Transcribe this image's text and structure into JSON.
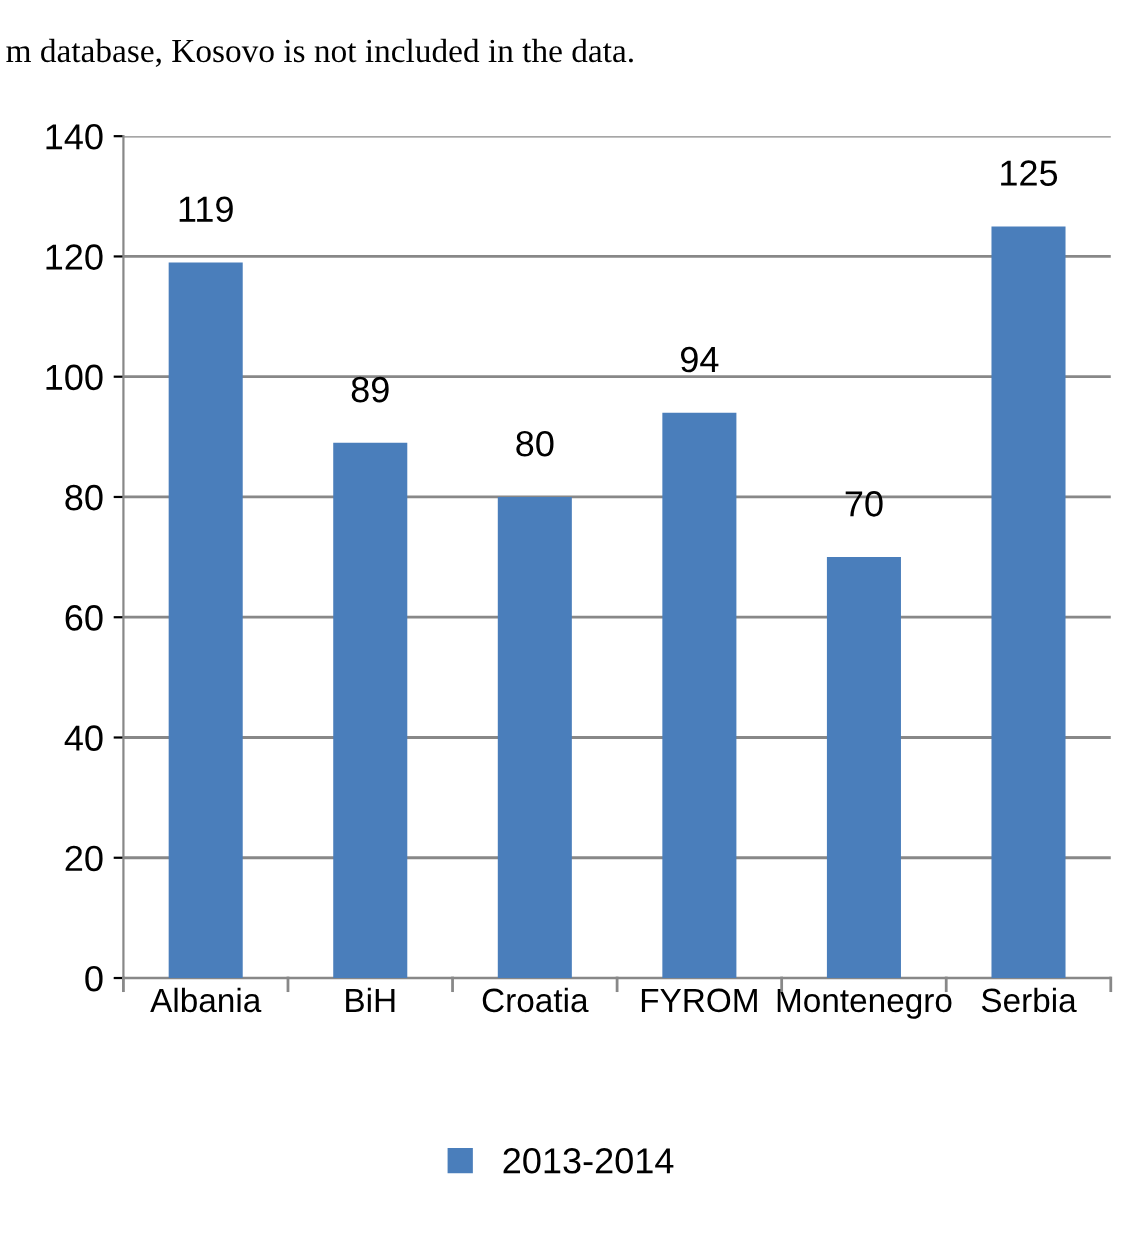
{
  "chart_data": {
    "type": "bar",
    "categories": [
      "Albania",
      "BiH",
      "Croatia",
      "FYROM",
      "Montenegro",
      "Serbia"
    ],
    "series": [
      {
        "name": "2013-2014",
        "color": "#4a7ebb",
        "values": [
          119,
          89,
          80,
          94,
          70,
          125
        ]
      }
    ],
    "ylim": [
      0,
      140
    ],
    "yticks": [
      0,
      20,
      40,
      60,
      80,
      100,
      120,
      140
    ],
    "grid": "y",
    "legend": "bottom",
    "data_labels": true,
    "annotations": [
      "m database, Kosovo is not included in the data."
    ]
  }
}
